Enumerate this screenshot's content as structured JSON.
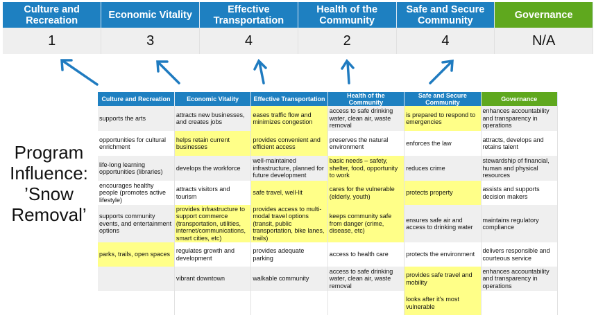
{
  "colors": {
    "blue_header": "#1e80c1",
    "green_header": "#5fa81e",
    "highlight": "#ffff88",
    "arrow": "#1f7bc0"
  },
  "summary": {
    "headers": [
      "Culture and Recreation",
      "Economic Vitality",
      "Effective Transportation",
      "Health of the Community",
      "Safe and Secure Community",
      "Governance"
    ],
    "scores": [
      "1",
      "3",
      "4",
      "2",
      "4",
      "N/A"
    ]
  },
  "side_label": "Program Influence: ’Snow Removal’",
  "grid": {
    "headers": [
      "Culture and Recreation",
      "Economic Vitality",
      "Effective Transportation",
      "Health of the Community",
      "Safe and Secure Community",
      "Governance"
    ],
    "rows": [
      {
        "height": 36,
        "cells": [
          {
            "text": "supports the arts"
          },
          {
            "text": "attracts new businesses, and creates jobs"
          },
          {
            "text": "eases traffic flow and minimizes congestion",
            "highlight": true
          },
          {
            "text": "access to safe drinking water, clean air, waste removal"
          },
          {
            "text": "is prepared to respond to emergencies",
            "highlight": true
          },
          {
            "text": "enhances accountability and transparency in operations"
          }
        ]
      },
      {
        "height": 36,
        "cells": [
          {
            "text": "opportunities for cultural enrichment"
          },
          {
            "text": "helps retain current businesses",
            "highlight": true
          },
          {
            "text": "provides convenient and efficient access",
            "highlight": true
          },
          {
            "text": "preserves the natural environment"
          },
          {
            "text": "enforces the law"
          },
          {
            "text": "attracts, develops and retains talent"
          }
        ]
      },
      {
        "height": 36,
        "cells": [
          {
            "text": "life-long learning opportunities (libraries)"
          },
          {
            "text": "develops the workforce"
          },
          {
            "text": "well-maintained infrastructure, planned for future development"
          },
          {
            "text": "basic needs – safety, shelter, food, opportunity to work",
            "highlight": true
          },
          {
            "text": "reduces crime"
          },
          {
            "text": "stewardship of financial, human and physical resources"
          }
        ]
      },
      {
        "height": 35,
        "cells": [
          {
            "text": "encourages healthy people (promotes active lifestyle)"
          },
          {
            "text": "attracts visitors and tourism"
          },
          {
            "text": "safe travel, well-lit",
            "highlight": true
          },
          {
            "text": "cares for the vulnerable (elderly, youth)",
            "highlight": true
          },
          {
            "text": "protects property",
            "highlight": true
          },
          {
            "text": "assists and supports decision makers"
          }
        ]
      },
      {
        "height": 54,
        "cells": [
          {
            "text": "supports community events, and entertainment options"
          },
          {
            "text": "provides infrastructure to support commerce (transportation, utilities, internet/communications, smart cities, etc)",
            "highlight": true
          },
          {
            "text": "provides access to multi-modal travel options (transit, public transportation, bike lanes, trails)",
            "highlight": true
          },
          {
            "text": "keeps community safe from danger (crime, disease, etc)",
            "highlight": true
          },
          {
            "text": "ensures safe air and access to drinking water"
          },
          {
            "text": "maintains regulatory compliance"
          }
        ]
      },
      {
        "height": 35,
        "cells": [
          {
            "text": "parks, trails, open spaces",
            "highlight": true
          },
          {
            "text": "regulates growth and development"
          },
          {
            "text": "provides adequate parking"
          },
          {
            "text": "access to health care"
          },
          {
            "text": "protects the environment"
          },
          {
            "text": "delivers responsible and courteous service"
          }
        ]
      },
      {
        "height": 35,
        "cells": [
          {
            "text": ""
          },
          {
            "text": "vibrant downtown"
          },
          {
            "text": "walkable community"
          },
          {
            "text": "access to safe drinking water, clean air, waste removal"
          },
          {
            "text": "provides safe travel and mobility",
            "highlight": true
          },
          {
            "text": "enhances accountability and transparency in operations"
          }
        ]
      },
      {
        "height": 35,
        "cells": [
          {
            "text": ""
          },
          {
            "text": ""
          },
          {
            "text": ""
          },
          {
            "text": ""
          },
          {
            "text": "looks after it's most vulnerable",
            "highlight": true
          },
          {
            "text": ""
          }
        ]
      }
    ]
  }
}
